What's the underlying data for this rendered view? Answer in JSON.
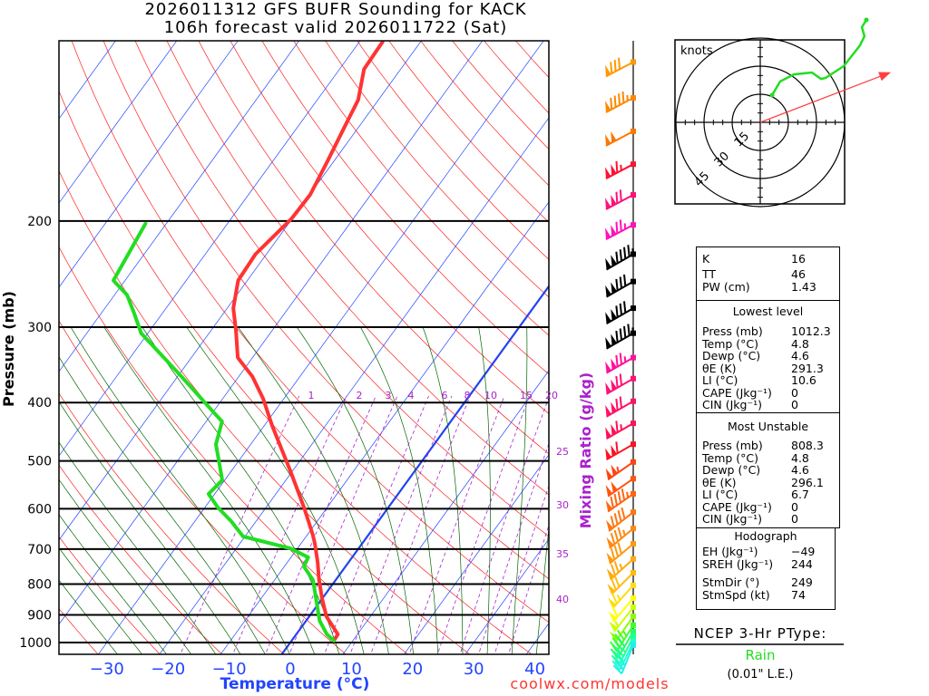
{
  "header": {
    "line1": "2026011312 GFS BUFR Sounding for KACK",
    "line2": "106h forecast valid 2026011722 (Sat)"
  },
  "footer": {
    "credit": "coolwx.com/models"
  },
  "colors": {
    "temperature": "#ff3333",
    "dewpoint": "#22dd22",
    "isotherm": "#2244ff",
    "zero_isotherm": "#2244ee",
    "dry_adiabat": "#ff2020",
    "moist_adiabat": "#006600",
    "mixing_ratio": "#aa22cc",
    "storm_motion": "#ff4040"
  },
  "chart_data": {
    "type": "line",
    "title": "Skew-T log-P sounding",
    "xlabel": "Temperature (°C)",
    "ylabel": "Pressure (mb)",
    "ylabel_right": "Mixing Ratio (g/kg)",
    "xlim": [
      -35,
      42
    ],
    "ylim": [
      1045,
      100
    ],
    "yscale": "log",
    "isobar_ticks": [
      1000,
      900,
      800,
      700,
      600,
      500,
      400,
      300,
      200
    ],
    "isobar_labels": [
      "1000",
      "900",
      "800",
      "700",
      "600",
      "500",
      "400",
      "300",
      "200"
    ],
    "temp_ticks": [
      -30,
      -20,
      -10,
      0,
      10,
      20,
      30,
      40
    ],
    "temp_labels": [
      "−30",
      "−20",
      "−10",
      "0",
      "10",
      "20",
      "30",
      "40"
    ],
    "mixing_ratio_lines": [
      1,
      2,
      3,
      4,
      6,
      8,
      10,
      15,
      20,
      25,
      30,
      35,
      40
    ],
    "mixing_ratio_labels_top": [
      "1",
      "2",
      "3",
      "4",
      "6",
      "8",
      "10",
      "15",
      "20"
    ],
    "mixing_ratio_labels_right": [
      "25",
      "30",
      "35",
      "40"
    ],
    "series": [
      {
        "name": "Temperature",
        "p": [
          993,
          969,
          905,
          844,
          788,
          735,
          686,
          663,
          597,
          520,
          437,
          394,
          362,
          337,
          304,
          279,
          251,
          227,
          213,
          198,
          181,
          160,
          140,
          126,
          112,
          101
        ],
        "t": [
          6.9,
          6.8,
          2.8,
          -0.1,
          -2.7,
          -5.1,
          -7.7,
          -9.1,
          -13.8,
          -20.3,
          -28.7,
          -33.4,
          -37.8,
          -42.4,
          -45.9,
          -49.0,
          -51.5,
          -51.8,
          -51.0,
          -50.1,
          -49.9,
          -51.0,
          -52.3,
          -53.3,
          -56.0,
          -56.2
        ]
      },
      {
        "name": "Dewpoint",
        "p": [
          993,
          969,
          920,
          788,
          748,
          722,
          698,
          667,
          629,
          597,
          567,
          538,
          469,
          430,
          415,
          362,
          307,
          284,
          265,
          251,
          202
        ],
        "t": [
          6.9,
          5.0,
          2.2,
          -3.7,
          -6.8,
          -7.2,
          -11.2,
          -20.3,
          -24.1,
          -27.9,
          -31.0,
          -30.4,
          -35.7,
          -37.4,
          -39.9,
          -49.4,
          -61.1,
          -64.7,
          -68.0,
          -71.9,
          -73.4
        ]
      }
    ],
    "wind_barbs": [
      {
        "p": 109,
        "dir": 242,
        "spd": 80,
        "color": "#ff9900"
      },
      {
        "p": 125,
        "dir": 242,
        "spd": 95,
        "color": "#ff8800"
      },
      {
        "p": 142,
        "dir": 242,
        "spd": 100,
        "color": "#ff7700"
      },
      {
        "p": 161,
        "dir": 242,
        "spd": 115,
        "color": "#ff1133"
      },
      {
        "p": 181,
        "dir": 242,
        "spd": 120,
        "color": "#ff1177"
      },
      {
        "p": 203,
        "dir": 242,
        "spd": 125,
        "color": "#ff11bb"
      },
      {
        "p": 227,
        "dir": 240,
        "spd": 145,
        "color": "#000000"
      },
      {
        "p": 252,
        "dir": 240,
        "spd": 130,
        "color": "#000000"
      },
      {
        "p": 279,
        "dir": 240,
        "spd": 130,
        "color": "#000000"
      },
      {
        "p": 307,
        "dir": 240,
        "spd": 145,
        "color": "#000000"
      },
      {
        "p": 337,
        "dir": 240,
        "spd": 125,
        "color": "#ff1199"
      },
      {
        "p": 365,
        "dir": 240,
        "spd": 120,
        "color": "#ff1177"
      },
      {
        "p": 398,
        "dir": 240,
        "spd": 120,
        "color": "#ff1166"
      },
      {
        "p": 433,
        "dir": 240,
        "spd": 115,
        "color": "#ff1155"
      },
      {
        "p": 469,
        "dir": 240,
        "spd": 110,
        "color": "#ff1122"
      },
      {
        "p": 502,
        "dir": 235,
        "spd": 105,
        "color": "#ff4411"
      },
      {
        "p": 535,
        "dir": 235,
        "spd": 100,
        "color": "#ff5511"
      },
      {
        "p": 567,
        "dir": 235,
        "spd": 95,
        "color": "#ff6611"
      },
      {
        "p": 608,
        "dir": 232,
        "spd": 90,
        "color": "#ff7711"
      },
      {
        "p": 647,
        "dir": 230,
        "spd": 85,
        "color": "#ff8811"
      },
      {
        "p": 686,
        "dir": 230,
        "spd": 80,
        "color": "#ff9911"
      },
      {
        "p": 727,
        "dir": 228,
        "spd": 75,
        "color": "#ffaa11"
      },
      {
        "p": 766,
        "dir": 225,
        "spd": 70,
        "color": "#ffbb11"
      },
      {
        "p": 804,
        "dir": 222,
        "spd": 65,
        "color": "#ffdd11"
      },
      {
        "p": 844,
        "dir": 220,
        "spd": 60,
        "color": "#ffff00"
      },
      {
        "p": 874,
        "dir": 218,
        "spd": 55,
        "color": "#ccff00"
      },
      {
        "p": 905,
        "dir": 215,
        "spd": 50,
        "color": "#88ff00"
      },
      {
        "p": 936,
        "dir": 212,
        "spd": 45,
        "color": "#44ff22"
      },
      {
        "p": 959,
        "dir": 210,
        "spd": 40,
        "color": "#22ff66"
      },
      {
        "p": 979,
        "dir": 207,
        "spd": 35,
        "color": "#22ff99"
      },
      {
        "p": 997,
        "dir": 205,
        "spd": 30,
        "color": "#22ffcc"
      },
      {
        "p": 1010,
        "dir": 202,
        "spd": 25,
        "color": "#22eeee"
      }
    ]
  },
  "hodograph": {
    "units_label": "knots",
    "ring_labels": [
      "15",
      "30",
      "45"
    ],
    "rings_kt": [
      15,
      30,
      45
    ],
    "trace_u": [
      6.3,
      10.6,
      17.9,
      27.6,
      32.4,
      34.8,
      44.5,
      53.2,
      55.6,
      54.2,
      56.6
    ],
    "trace_v": [
      14.5,
      21.8,
      25.6,
      26.6,
      23.2,
      23.7,
      30.0,
      41.1,
      46.0,
      50.8,
      54.7
    ]
  },
  "indices": {
    "k": {
      "label": "K",
      "value": "16"
    },
    "tt": {
      "label": "TT",
      "value": "46"
    },
    "pw": {
      "label": "PW (cm)",
      "value": "1.43"
    }
  },
  "lowest_level": {
    "title": "Lowest level",
    "rows": [
      {
        "label": "Press (mb)",
        "value": "1012.3"
      },
      {
        "label": "Temp (°C)",
        "value": "4.8"
      },
      {
        "label": "Dewp (°C)",
        "value": "4.6"
      },
      {
        "label": "θE (K)",
        "value": "291.3"
      },
      {
        "label": "LI (°C)",
        "value": "10.6"
      },
      {
        "label": "CAPE (Jkg⁻¹)",
        "value": "0"
      },
      {
        "label": "CIN (Jkg⁻¹)",
        "value": "0"
      }
    ]
  },
  "most_unstable": {
    "title": "Most Unstable",
    "rows": [
      {
        "label": "Press (mb)",
        "value": "808.3"
      },
      {
        "label": "Temp (°C)",
        "value": "4.8"
      },
      {
        "label": "Dewp (°C)",
        "value": "4.6"
      },
      {
        "label": "θE (K)",
        "value": "296.1"
      },
      {
        "label": "LI (°C)",
        "value": "6.7"
      },
      {
        "label": "CAPE (Jkg⁻¹)",
        "value": "0"
      },
      {
        "label": "CIN (Jkg⁻¹)",
        "value": "0"
      }
    ]
  },
  "hodo_stats": {
    "title": "Hodograph",
    "rows": [
      {
        "label": "EH (Jkg⁻¹)",
        "value": "−49"
      },
      {
        "label": "SREH (Jkg⁻¹)",
        "value": "244"
      },
      {
        "label": "StmDir (°)",
        "value": "249"
      },
      {
        "label": "StmSpd (kt)",
        "value": "74"
      }
    ],
    "storm_dir": 249,
    "storm_spd": 74
  },
  "ptype": {
    "title": "NCEP 3-Hr PType:",
    "value": "Rain",
    "amount": "(0.01\" L.E.)"
  }
}
